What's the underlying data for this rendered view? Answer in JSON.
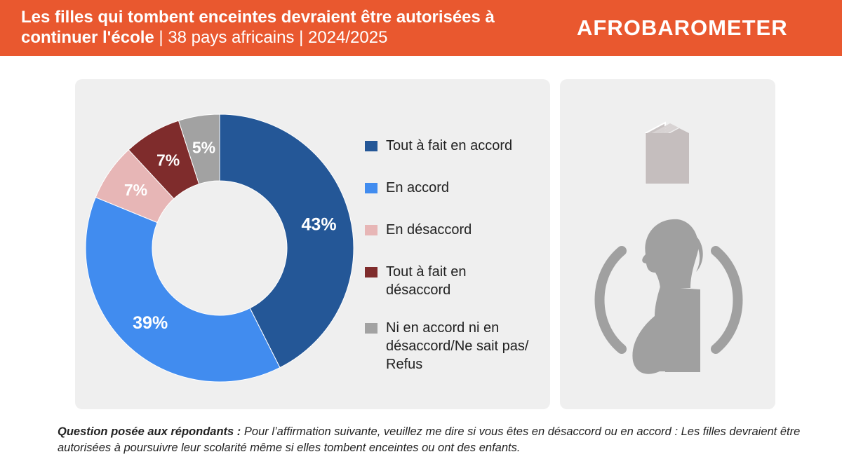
{
  "header": {
    "title_bold": "Les filles qui tombent enceintes devraient être autorisées à continuer l'école",
    "title_rest": " | 38 pays africains | 2024/2025",
    "logo": "AFROBAROMETER"
  },
  "chart_data": {
    "type": "pie",
    "donut": true,
    "categories": [
      "Tout à fait en accord",
      "En accord",
      "En désaccord",
      "Tout à fait en désaccord",
      "Ni en accord ni en désaccord/Ne sait pas/ Refus"
    ],
    "values": [
      43,
      39,
      7,
      7,
      5
    ],
    "labels": [
      "43%",
      "39%",
      "7%",
      "7%",
      "5%"
    ],
    "colors": [
      "#245797",
      "#418cef",
      "#e7b6b6",
      "#7f2c2c",
      "#a2a2a2"
    ],
    "legend_placement": "right"
  },
  "legend": [
    {
      "label": "Tout à fait en accord",
      "color": "#245797"
    },
    {
      "label": "En accord",
      "color": "#418cef"
    },
    {
      "label": "En désaccord",
      "color": "#e7b6b6"
    },
    {
      "label": "Tout à fait en désaccord",
      "color": "#7f2c2c"
    },
    {
      "label": "Ni en accord ni en désaccord/Ne sait pas/ Refus",
      "color": "#a2a2a2"
    }
  ],
  "icons": [
    "book-icon",
    "pregnant-woman-icon"
  ],
  "footer": {
    "question_label": "Question posée aux répondants :",
    "question_text": " Pour l’affirmation suivante, veuillez me dire si vous êtes en désaccord ou en accord : Les filles devraient être autorisées à poursuivre leur scolarité même si elles tombent enceintes ou ont des enfants."
  }
}
